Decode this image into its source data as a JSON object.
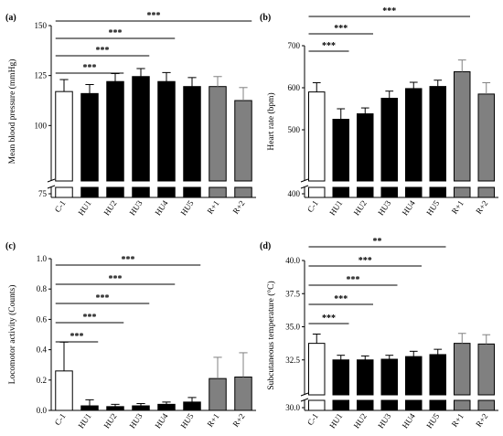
{
  "chart_data": [
    {
      "type": "bar",
      "panel_label": "(a)",
      "ylabel": "Mean blood pressure (mmHg)",
      "categories": [
        "C-1",
        "HU1",
        "HU2",
        "HU3",
        "HU4",
        "HU5",
        "R+1",
        "R+2"
      ],
      "values": [
        117,
        116,
        122,
        124.5,
        122,
        119.5,
        119.5,
        112.5
      ],
      "errors": [
        6,
        4.5,
        4,
        4,
        4.5,
        4.5,
        5,
        6.5
      ],
      "colors": [
        "#ffffff",
        "#000000",
        "#000000",
        "#000000",
        "#000000",
        "#000000",
        "#808080",
        "#808080"
      ],
      "y_ticks": [
        "75",
        "100",
        "125",
        "150"
      ],
      "axis_break": true,
      "ylim_upper_segment": [
        75,
        150
      ],
      "significance": [
        {
          "from": "C-1",
          "to": "HU2",
          "label": "***"
        },
        {
          "from": "C-1",
          "to": "HU3",
          "label": "***"
        },
        {
          "from": "C-1",
          "to": "HU4",
          "label": "***"
        },
        {
          "from": "C-1",
          "to": "R+2",
          "label": "***"
        }
      ]
    },
    {
      "type": "bar",
      "panel_label": "(b)",
      "ylabel": "Heart rate (bpm)",
      "categories": [
        "C-1",
        "HU1",
        "HU2",
        "HU3",
        "HU4",
        "HU5",
        "R+1",
        "R+2"
      ],
      "values": [
        590,
        525,
        538,
        575,
        598,
        603,
        638,
        585
      ],
      "errors": [
        22,
        25,
        14,
        17,
        15,
        15,
        28,
        27
      ],
      "colors": [
        "#ffffff",
        "#000000",
        "#000000",
        "#000000",
        "#000000",
        "#000000",
        "#808080",
        "#808080"
      ],
      "y_ticks": [
        "400",
        "500",
        "600",
        "700"
      ],
      "axis_break": true,
      "ylim_upper_segment": [
        400,
        700
      ],
      "significance": [
        {
          "from": "C-1",
          "to": "HU1",
          "label": "***"
        },
        {
          "from": "C-1",
          "to": "HU2",
          "label": "***"
        },
        {
          "from": "C-1",
          "to": "R+1",
          "label": "***"
        }
      ]
    },
    {
      "type": "bar",
      "panel_label": "(c)",
      "ylabel": "Locomotor activity (Counts)",
      "categories": [
        "C-1",
        "HU1",
        "HU2",
        "HU3",
        "HU4",
        "HU5",
        "R+1",
        "R+2"
      ],
      "values": [
        0.26,
        0.03,
        0.025,
        0.03,
        0.04,
        0.055,
        0.21,
        0.22
      ],
      "errors": [
        0.19,
        0.04,
        0.015,
        0.015,
        0.015,
        0.03,
        0.14,
        0.16
      ],
      "colors": [
        "#ffffff",
        "#000000",
        "#000000",
        "#000000",
        "#000000",
        "#000000",
        "#808080",
        "#808080"
      ],
      "y_ticks": [
        "0.0",
        "0.2",
        "0.4",
        "0.6",
        "0.8",
        "1.0"
      ],
      "axis_break": false,
      "ylim": [
        0,
        1.0
      ],
      "significance": [
        {
          "from": "C-1",
          "to": "HU1",
          "label": "***"
        },
        {
          "from": "C-1",
          "to": "HU2",
          "label": "***"
        },
        {
          "from": "C-1",
          "to": "HU3",
          "label": "***"
        },
        {
          "from": "C-1",
          "to": "HU4",
          "label": "***"
        },
        {
          "from": "C-1",
          "to": "HU5",
          "label": "***"
        }
      ]
    },
    {
      "type": "bar",
      "panel_label": "(d)",
      "ylabel": "Subcutaneous temperature (°C)",
      "categories": [
        "C-1",
        "HU1",
        "HU2",
        "HU3",
        "HU4",
        "HU5",
        "R+1",
        "R+2"
      ],
      "values": [
        33.75,
        32.5,
        32.5,
        32.55,
        32.75,
        32.9,
        33.75,
        33.7
      ],
      "errors": [
        0.7,
        0.35,
        0.3,
        0.3,
        0.4,
        0.4,
        0.75,
        0.7
      ],
      "colors": [
        "#ffffff",
        "#000000",
        "#000000",
        "#000000",
        "#000000",
        "#000000",
        "#808080",
        "#808080"
      ],
      "y_ticks": [
        "30.0",
        "32.5",
        "35.0",
        "37.5",
        "40.0"
      ],
      "axis_break": true,
      "ylim_upper_segment": [
        30.0,
        40.0
      ],
      "significance": [
        {
          "from": "C-1",
          "to": "HU1",
          "label": "***"
        },
        {
          "from": "C-1",
          "to": "HU2",
          "label": "***"
        },
        {
          "from": "C-1",
          "to": "HU3",
          "label": "***"
        },
        {
          "from": "C-1",
          "to": "HU4",
          "label": "***"
        },
        {
          "from": "C-1",
          "to": "HU5",
          "label": "**"
        }
      ]
    }
  ]
}
